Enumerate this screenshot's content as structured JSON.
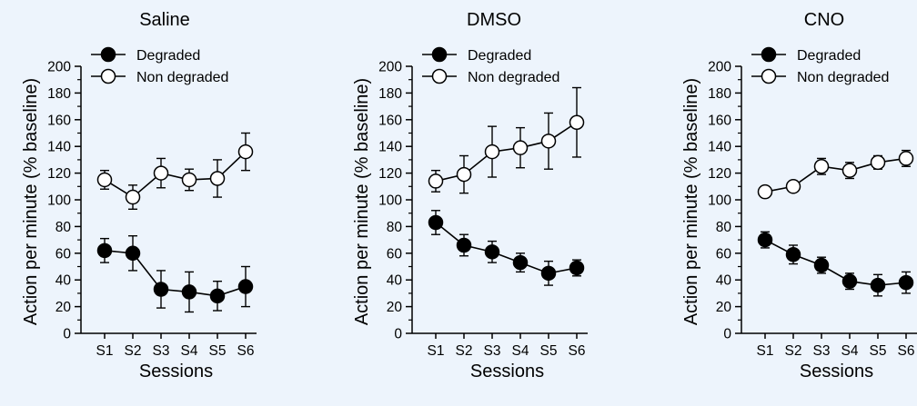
{
  "figure": {
    "background": "#edf4fc"
  },
  "chart_data": [
    {
      "type": "line",
      "title": "Saline",
      "xlabel": "Sessions",
      "ylabel": "Action per minute (% baseline)",
      "categories": [
        "S1",
        "S2",
        "S3",
        "S4",
        "S5",
        "S6"
      ],
      "ylim": [
        0,
        200
      ],
      "yticks": [
        0,
        20,
        40,
        60,
        80,
        100,
        120,
        140,
        160,
        180,
        200
      ],
      "legend_position": "top-left",
      "grid": false,
      "series": [
        {
          "name": "Degraded",
          "marker": "filled-circle",
          "color": "#000000",
          "values": [
            62,
            60,
            33,
            31,
            28,
            35
          ],
          "errors": [
            9,
            13,
            14,
            15,
            11,
            15
          ]
        },
        {
          "name": "Non degraded",
          "marker": "open-circle",
          "color": "#000000",
          "values": [
            115,
            102,
            120,
            115,
            116,
            136
          ],
          "errors": [
            7,
            9,
            11,
            8,
            14,
            14
          ]
        }
      ]
    },
    {
      "type": "line",
      "title": "DMSO",
      "xlabel": "Sessions",
      "ylabel": "Action per minute (% baseline)",
      "categories": [
        "S1",
        "S2",
        "S3",
        "S4",
        "S5",
        "S6"
      ],
      "ylim": [
        0,
        200
      ],
      "yticks": [
        0,
        20,
        40,
        60,
        80,
        100,
        120,
        140,
        160,
        180,
        200
      ],
      "legend_position": "top-left",
      "grid": false,
      "series": [
        {
          "name": "Degraded",
          "marker": "filled-circle",
          "color": "#000000",
          "values": [
            83,
            66,
            61,
            53,
            45,
            49
          ],
          "errors": [
            9,
            8,
            8,
            7,
            9,
            6
          ]
        },
        {
          "name": "Non degraded",
          "marker": "open-circle",
          "color": "#000000",
          "values": [
            114,
            119,
            136,
            139,
            144,
            158
          ],
          "errors": [
            8,
            14,
            19,
            15,
            21,
            26
          ]
        }
      ]
    },
    {
      "type": "line",
      "title": "CNO",
      "xlabel": "Sessions",
      "ylabel": "Action per minute (% baseline)",
      "categories": [
        "S1",
        "S2",
        "S3",
        "S4",
        "S5",
        "S6"
      ],
      "ylim": [
        0,
        200
      ],
      "yticks": [
        0,
        20,
        40,
        60,
        80,
        100,
        120,
        140,
        160,
        180,
        200
      ],
      "legend_position": "top-left",
      "grid": false,
      "series": [
        {
          "name": "Degraded",
          "marker": "filled-circle",
          "color": "#000000",
          "values": [
            70,
            59,
            51,
            39,
            36,
            38
          ],
          "errors": [
            6,
            7,
            6,
            6,
            8,
            8
          ]
        },
        {
          "name": "Non degraded",
          "marker": "open-circle",
          "color": "#000000",
          "values": [
            106,
            110,
            125,
            122,
            128,
            131
          ],
          "errors": [
            4,
            4,
            6,
            6,
            5,
            6
          ]
        }
      ]
    }
  ]
}
